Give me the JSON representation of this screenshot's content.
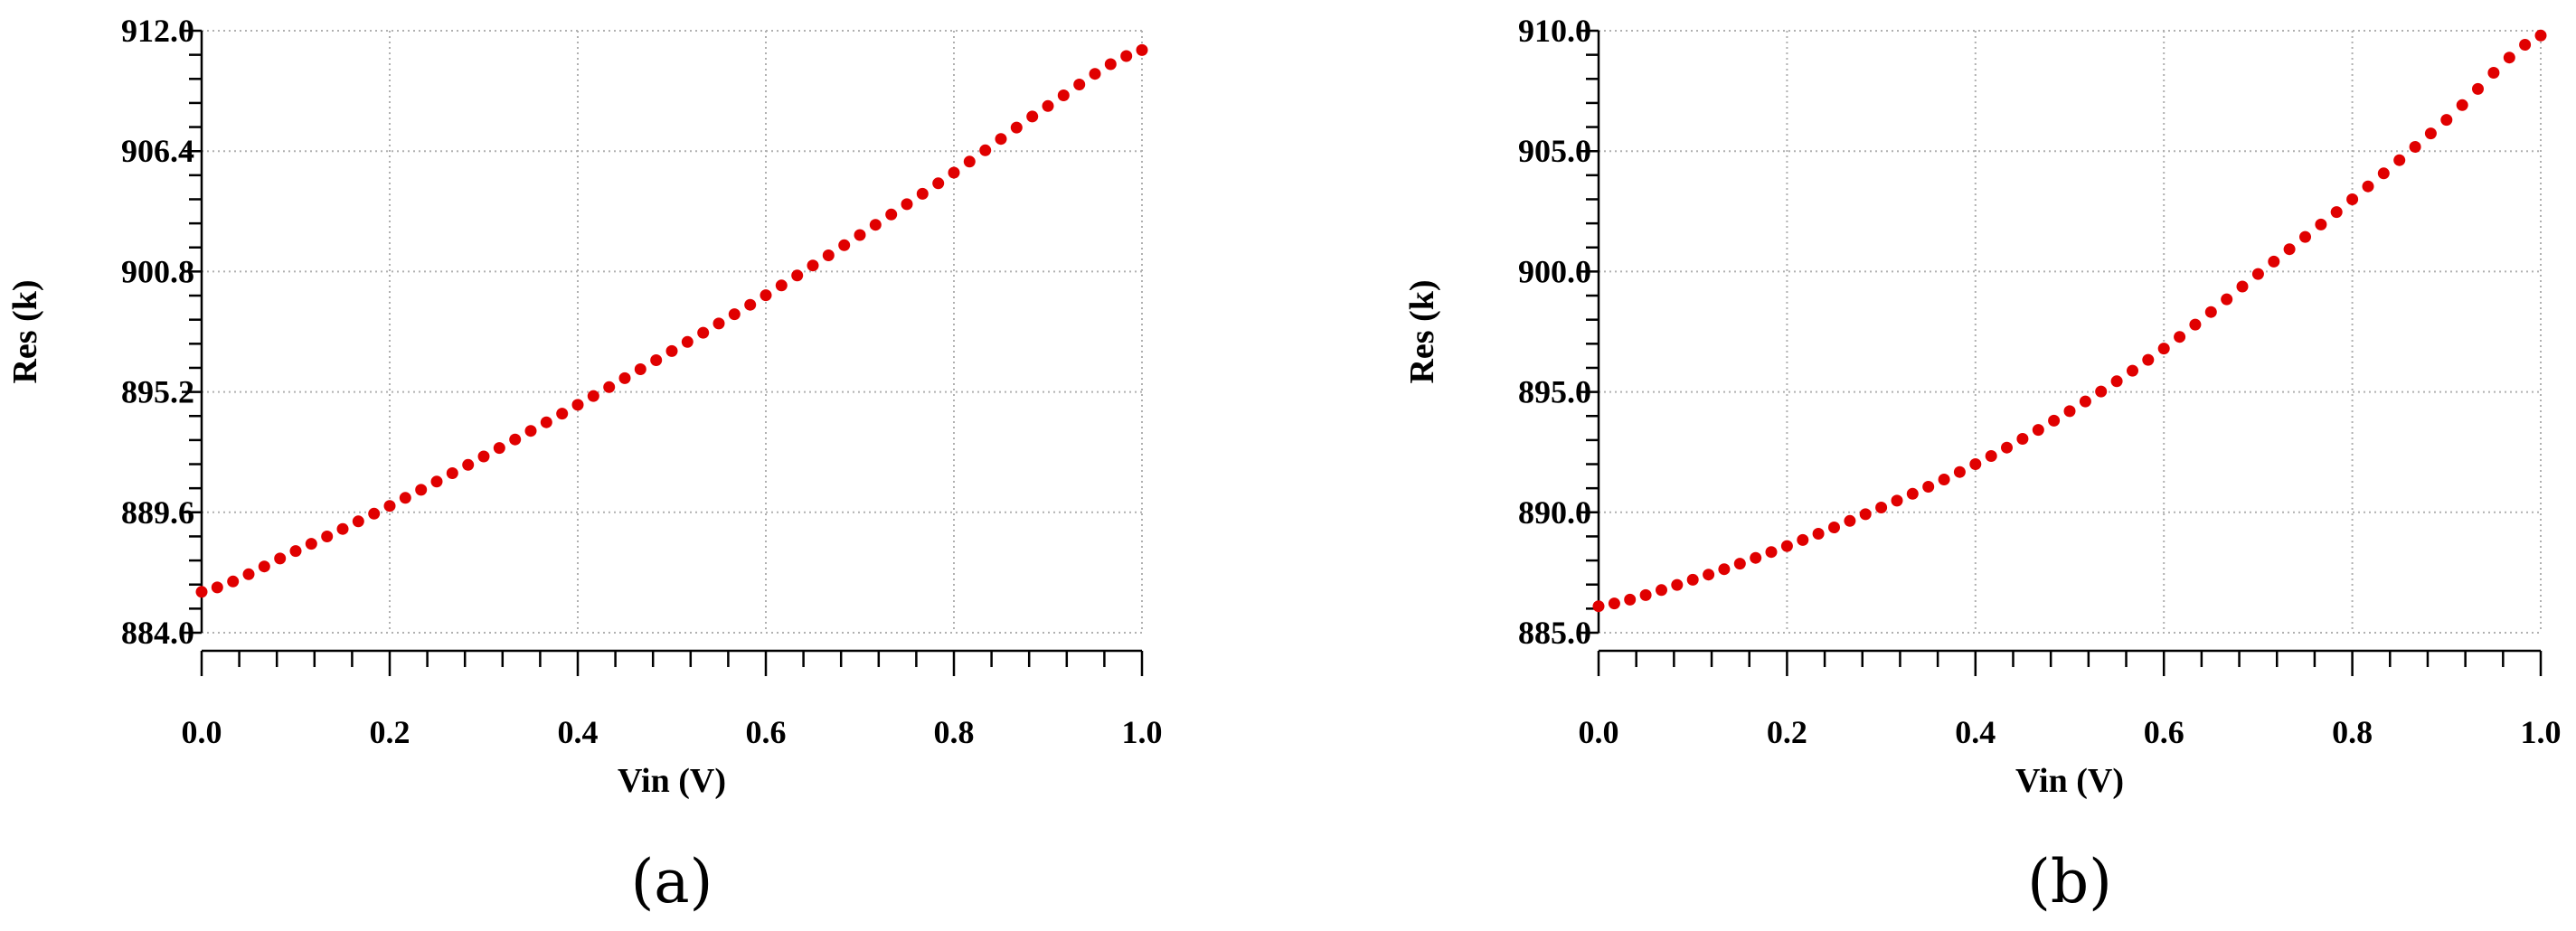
{
  "chart_data": [
    {
      "type": "line",
      "panel_label": "(a)",
      "xlabel": "Vin (V)",
      "ylabel": "Res (k)",
      "xlim": [
        0.0,
        1.0
      ],
      "ylim": [
        884.0,
        912.0
      ],
      "xticks": [
        "0.0",
        "0.2",
        "0.4",
        "0.6",
        "0.8",
        "1.0"
      ],
      "yticks": [
        "884.0",
        "889.6",
        "895.2",
        "900.8",
        "906.4",
        "912.0"
      ],
      "grid": true,
      "line_style": "dotted",
      "color": "#e00000",
      "series": [
        {
          "x": [
            0.0,
            0.1,
            0.2,
            0.3,
            0.4,
            0.5,
            0.6,
            0.7,
            0.8,
            0.9,
            1.0
          ],
          "values": [
            885.9,
            887.8,
            889.9,
            892.2,
            894.6,
            897.1,
            899.7,
            902.5,
            905.4,
            908.5,
            911.1
          ]
        }
      ]
    },
    {
      "type": "line",
      "panel_label": "(b)",
      "xlabel": "Vin (V)",
      "ylabel": "Res (k)",
      "xlim": [
        0.0,
        1.0
      ],
      "ylim": [
        885.0,
        910.0
      ],
      "xticks": [
        "0.0",
        "0.2",
        "0.4",
        "0.6",
        "0.8",
        "1.0"
      ],
      "yticks": [
        "885.0",
        "890.0",
        "895.0",
        "900.0",
        "905.0",
        "910.0"
      ],
      "grid": true,
      "line_style": "dotted",
      "color": "#e00000",
      "series": [
        {
          "x": [
            0.0,
            0.1,
            0.2,
            0.3,
            0.4,
            0.5,
            0.6,
            0.7,
            0.8,
            0.9,
            1.0
          ],
          "values": [
            886.1,
            887.2,
            888.6,
            890.2,
            892.0,
            894.2,
            896.8,
            899.9,
            903.0,
            906.3,
            909.8
          ]
        }
      ]
    }
  ]
}
